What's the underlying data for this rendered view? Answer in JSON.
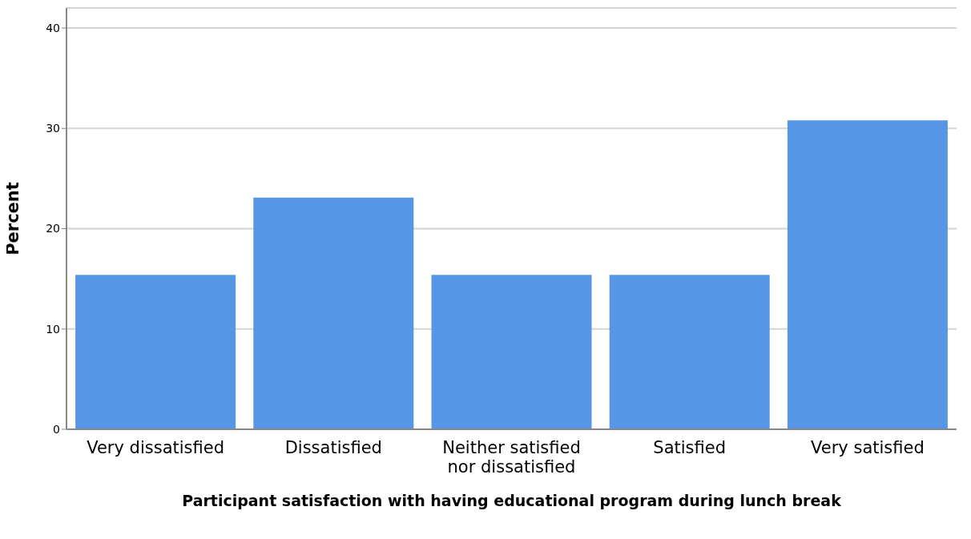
{
  "chart_data": {
    "type": "bar",
    "xlabel": "Participant satisfaction with having educational program during lunch break",
    "ylabel": "Percent",
    "categories": [
      "Very dissatisfied",
      "Dissatisfied",
      "Neither satisfied nor dissatisfied",
      "Satisfied",
      "Very satisfied"
    ],
    "values": [
      15.4,
      23.1,
      15.4,
      15.4,
      30.8
    ],
    "color": "#5596e6",
    "ylim": [
      0,
      42
    ],
    "yticks": [
      0,
      10,
      20,
      30,
      40
    ],
    "grid": "y",
    "legend": false
  }
}
